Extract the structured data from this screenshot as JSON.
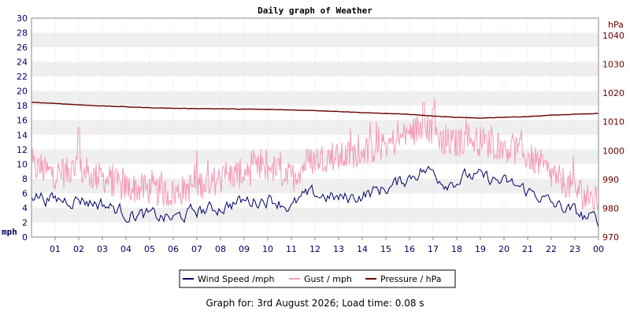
{
  "chart_data": {
    "type": "line",
    "title": "Daily graph of Weather",
    "left_axis": {
      "unit_label": "mph",
      "ylim": [
        0,
        30
      ],
      "ticks": [
        0,
        2,
        4,
        6,
        8,
        10,
        12,
        14,
        16,
        18,
        20,
        22,
        24,
        26,
        28,
        30
      ]
    },
    "right_axis": {
      "unit_label": "hPa",
      "ylim": [
        970,
        1046
      ],
      "ticks": [
        970,
        980,
        990,
        1000,
        1010,
        1020,
        1030,
        1040
      ]
    },
    "x_ticks": [
      "01",
      "02",
      "03",
      "04",
      "05",
      "06",
      "07",
      "08",
      "09",
      "10",
      "11",
      "12",
      "13",
      "14",
      "15",
      "16",
      "17",
      "18",
      "19",
      "20",
      "21",
      "22",
      "23",
      "00"
    ],
    "x_range_hours": [
      0,
      24
    ],
    "grid": "alternating horizontal bands",
    "legend_position": "bottom-center",
    "series": [
      {
        "name": "Wind Speed /mph",
        "axis": "left",
        "color": "#000066",
        "x_hours": [
          0,
          0.5,
          1,
          1.5,
          2,
          2.5,
          3,
          3.5,
          4,
          4.5,
          5,
          5.5,
          6,
          6.5,
          7,
          7.5,
          8,
          8.5,
          9,
          9.5,
          10,
          10.5,
          11,
          11.5,
          12,
          12.5,
          13,
          13.5,
          14,
          14.5,
          15,
          15.5,
          16,
          16.5,
          17,
          17.5,
          18,
          18.5,
          19,
          19.5,
          20,
          20.5,
          21,
          21.5,
          22,
          22.5,
          23,
          23.5,
          24
        ],
        "values": [
          6.0,
          5.5,
          5.0,
          5.2,
          5.3,
          4.8,
          4.6,
          3.9,
          3.3,
          3.0,
          2.9,
          2.7,
          2.5,
          3.0,
          3.6,
          3.7,
          4.1,
          4.6,
          4.9,
          5.0,
          5.3,
          4.9,
          4.0,
          5.4,
          5.8,
          5.6,
          5.2,
          5.4,
          5.8,
          6.2,
          6.7,
          7.3,
          8.3,
          9.2,
          8.9,
          7.6,
          7.8,
          8.4,
          8.1,
          7.9,
          7.4,
          7.0,
          6.3,
          5.7,
          4.5,
          4.0,
          3.4,
          2.6,
          2.3
        ]
      },
      {
        "name": "Gust / mph",
        "axis": "left",
        "color": "#f59ab8",
        "x_hours": [
          0,
          0.5,
          1,
          1.5,
          2,
          2.5,
          3,
          3.5,
          4,
          4.5,
          5,
          5.5,
          6,
          6.5,
          7,
          7.5,
          8,
          8.5,
          9,
          9.5,
          10,
          10.5,
          11,
          11.5,
          12,
          12.5,
          13,
          13.5,
          14,
          14.5,
          15,
          15.5,
          16,
          16.5,
          17,
          17.5,
          18,
          18.5,
          19,
          19.5,
          20,
          20.5,
          21,
          21.5,
          22,
          22.5,
          23,
          23.5,
          24
        ],
        "values": [
          9.0,
          8.5,
          8.0,
          8.2,
          8.5,
          7.8,
          7.5,
          6.8,
          6.2,
          6.0,
          5.9,
          5.5,
          5.3,
          6.0,
          6.6,
          6.9,
          7.3,
          7.9,
          8.2,
          8.6,
          8.9,
          8.3,
          7.4,
          9.2,
          10.0,
          10.4,
          10.2,
          10.6,
          11.2,
          11.5,
          12.0,
          12.6,
          13.6,
          14.5,
          13.9,
          12.3,
          12.2,
          12.9,
          12.5,
          12.1,
          11.8,
          11.2,
          10.4,
          9.5,
          7.8,
          7.0,
          6.0,
          4.8,
          4.2
        ],
        "peaks": [
          {
            "x_hour": 2.0,
            "value": 15.0
          },
          {
            "x_hour": 16.6,
            "value": 18.4
          },
          {
            "x_hour": 17.0,
            "value": 17.6
          }
        ]
      },
      {
        "name": "Pressure / hPa",
        "axis": "right",
        "color": "#660000",
        "x_hours": [
          0,
          1,
          2,
          3,
          4,
          5,
          6,
          7,
          8,
          9,
          10,
          11,
          12,
          13,
          14,
          15,
          16,
          17,
          18,
          19,
          20,
          21,
          22,
          23,
          24
        ],
        "values": [
          1016.8,
          1016.4,
          1015.9,
          1015.5,
          1015.2,
          1014.9,
          1014.7,
          1014.6,
          1014.5,
          1014.4,
          1014.3,
          1014.1,
          1013.9,
          1013.6,
          1013.2,
          1012.9,
          1012.6,
          1012.0,
          1011.5,
          1011.3,
          1011.6,
          1011.8,
          1012.3,
          1012.6,
          1012.9
        ]
      }
    ]
  },
  "footer": {
    "text": "Graph for: 3rd August 2026; Load time: 0.08 s"
  }
}
